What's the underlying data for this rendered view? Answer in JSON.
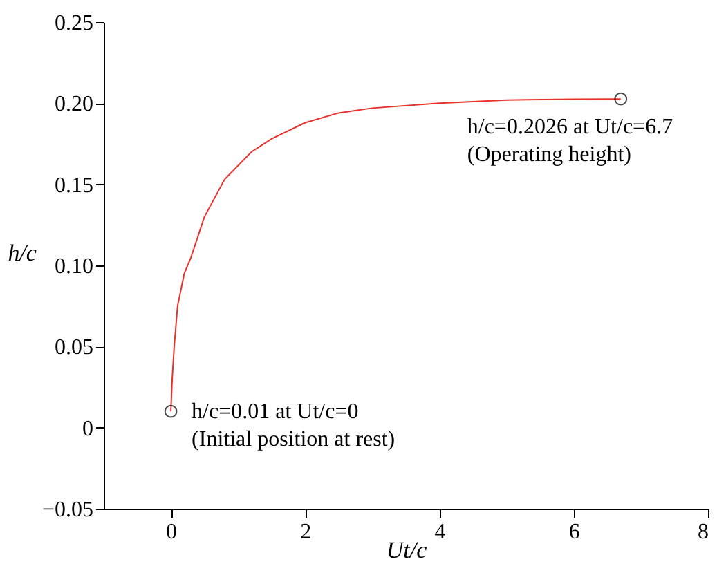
{
  "chart_data": {
    "type": "line",
    "xlabel": "Ut/c",
    "ylabel": "h/c",
    "xlim": [
      -1,
      8
    ],
    "xticks": [
      0,
      2,
      4,
      6,
      8
    ],
    "ylim": [
      -0.05,
      0.25
    ],
    "yticks": [
      {
        "value": -0.05,
        "label": "−0.05"
      },
      0,
      0.05,
      {
        "value": 0.1,
        "label": "0.10"
      },
      0.15,
      {
        "value": 0.2,
        "label": "0.20"
      },
      0.25
    ],
    "series": [
      {
        "color": "#e8312a",
        "x": [
          0,
          0.02,
          0.05,
          0.1,
          0.2,
          0.3,
          0.5,
          0.8,
          1.2,
          1.5,
          2,
          2.5,
          3,
          4,
          5,
          6,
          6.7
        ],
        "values": [
          0.01,
          0.03,
          0.05,
          0.075,
          0.095,
          0.105,
          0.13,
          0.153,
          0.17,
          0.178,
          0.188,
          0.194,
          0.197,
          0.2,
          0.202,
          0.2025,
          0.2026
        ]
      },
      {
        "type": "scatter",
        "color": "#000000",
        "marker": "circle",
        "x": [
          0,
          6.7
        ],
        "values": [
          0.01,
          0.2026
        ]
      }
    ],
    "annotations": [
      {
        "text": "h/c=0.01 at Ut/c=0\n(Initial position at rest)",
        "x": 0,
        "y": 0.01
      },
      {
        "text": "h/c=0.2026 at Ut/c=6.7\n(Operating height)",
        "x": 6.7,
        "y": 0.2026
      }
    ],
    "grid": false
  }
}
